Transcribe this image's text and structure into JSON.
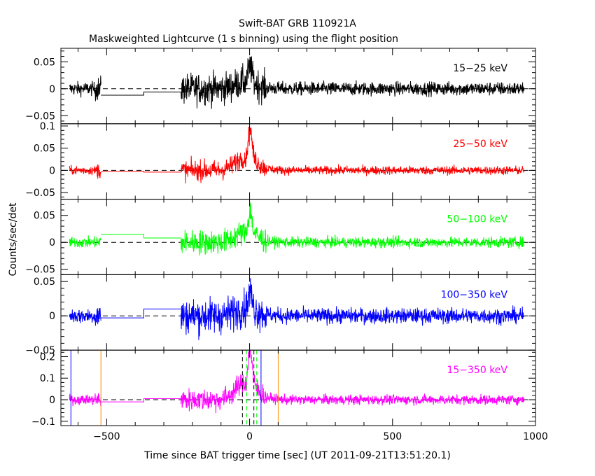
{
  "chart_data": {
    "type": "line",
    "title": "Swift-BAT GRB 110921A",
    "subtitle": "Maskweighted Lightcurve (1 s binning) using the flight position",
    "xlabel": "Time since BAT trigger time [sec] (UT 2011-09-21T13:51:20.1)",
    "ylabel": "Counts/sec/det",
    "xlim": [
      -660,
      1000
    ],
    "xticks": [
      -500,
      0,
      500,
      1000
    ],
    "xtick_labels": [
      "−500",
      "0",
      "500",
      "1000"
    ],
    "gap_levels_note": "slew-gap segments are constant lines",
    "panels": [
      {
        "label": "15−25 keV",
        "color": "#000000",
        "ylim": [
          -0.065,
          0.075
        ],
        "yticks": [
          0.05,
          0,
          -0.05
        ],
        "ytick_labels": [
          "0.05",
          "0",
          "−0.05"
        ],
        "noise": 0.009,
        "burst_peak": 0.035,
        "gap_levels": [
          -0.012,
          -0.006
        ]
      },
      {
        "label": "25−50 keV",
        "color": "#ff0000",
        "ylim": [
          -0.065,
          0.105
        ],
        "yticks": [
          0.1,
          0.05,
          0,
          -0.05
        ],
        "ytick_labels": [
          "0.1",
          "0.05",
          "0",
          "−0.05"
        ],
        "noise": 0.007,
        "burst_peak": 0.08,
        "gap_levels": [
          -0.002,
          -0.004
        ]
      },
      {
        "label": "50−100 keV",
        "color": "#00ff00",
        "ylim": [
          -0.06,
          0.08
        ],
        "yticks": [
          0.05,
          0,
          -0.05
        ],
        "ytick_labels": [
          "0.05",
          "0",
          "−0.05"
        ],
        "noise": 0.007,
        "burst_peak": 0.05,
        "gap_levels": [
          0.015,
          0.008
        ]
      },
      {
        "label": "100−350 keV",
        "color": "#0000ff",
        "ylim": [
          -0.05,
          0.06
        ],
        "yticks": [
          0.05,
          0,
          -0.05
        ],
        "ytick_labels": [
          "0.05",
          "0",
          "−0.05"
        ],
        "noise": 0.008,
        "burst_peak": 0.03,
        "gap_levels": [
          -0.003,
          0.01
        ]
      },
      {
        "label": "15−350 keV",
        "color": "#ff00ff",
        "ylim": [
          -0.12,
          0.23
        ],
        "yticks": [
          0.2,
          0.1,
          0,
          -0.1
        ],
        "ytick_labels": [
          "0.2",
          "0.1",
          "0",
          "−0.1"
        ],
        "noise": 0.016,
        "burst_peak": 0.21,
        "gap_levels": [
          -0.01,
          0.005
        ],
        "vlines": [
          {
            "x": -625,
            "color": "#0000ff",
            "style": "solid"
          },
          {
            "x": -520,
            "color": "#ff8c00",
            "style": "solid"
          },
          {
            "x": 40,
            "color": "#0000ff",
            "style": "solid"
          },
          {
            "x": 100,
            "color": "#ff8c00",
            "style": "solid"
          },
          {
            "x": -25,
            "color": "#000000",
            "style": "dashed"
          },
          {
            "x": -10,
            "color": "#00ff00",
            "style": "dashed"
          },
          {
            "x": 15,
            "color": "#000000",
            "style": "dashed"
          },
          {
            "x": 25,
            "color": "#00ff00",
            "style": "dashed"
          }
        ]
      }
    ],
    "segments": [
      [
        -630,
        -520
      ],
      [
        -240,
        960
      ]
    ],
    "gap_edges": [
      -520,
      -370,
      -240
    ]
  }
}
